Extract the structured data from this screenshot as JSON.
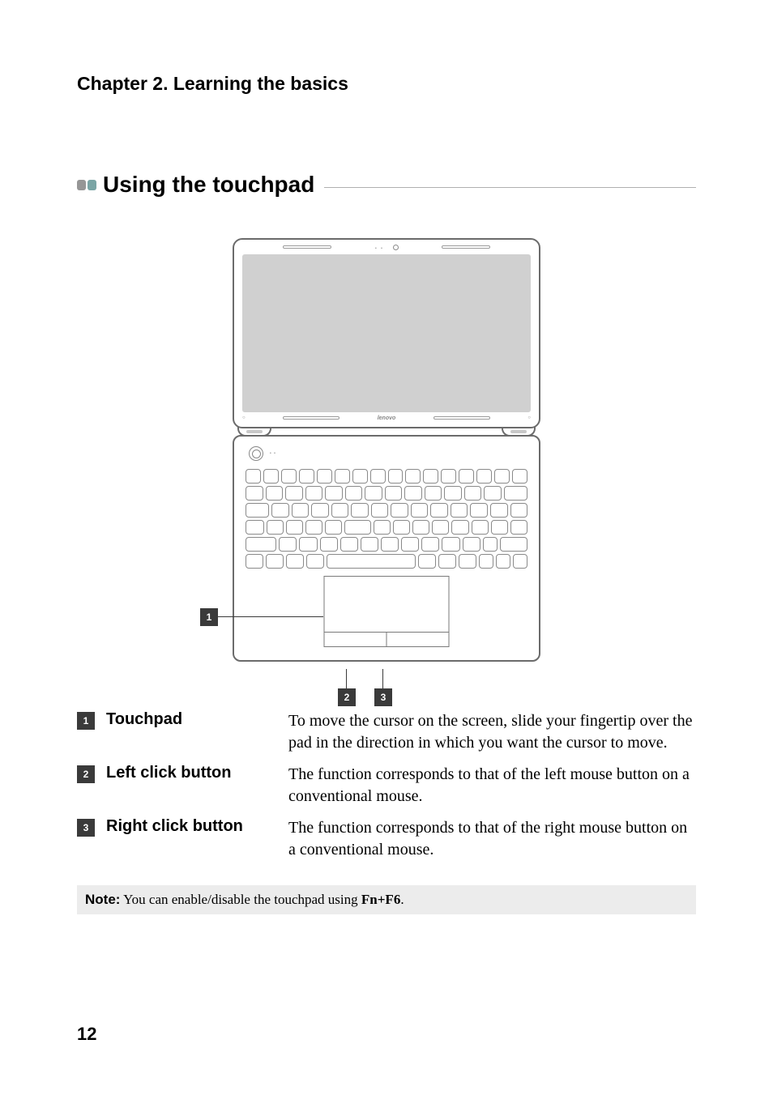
{
  "chapter": {
    "title": "Chapter 2. Learning the basics"
  },
  "section": {
    "title": "Using the touchpad"
  },
  "figure": {
    "brand": "lenovo",
    "callouts": {
      "c1": "1",
      "c2": "2",
      "c3": "3"
    },
    "keyboard_rows": [
      [
        1,
        1,
        1,
        1,
        1,
        1,
        1,
        1,
        1,
        1,
        1,
        1,
        1,
        1,
        1,
        1
      ],
      [
        1,
        1,
        1,
        1,
        1,
        1,
        1,
        1,
        1,
        1,
        1,
        1,
        1,
        1.4
      ],
      [
        1.4,
        1,
        1,
        1,
        1,
        1,
        1,
        1,
        1,
        1,
        1,
        1,
        1,
        1
      ],
      [
        1.1,
        1,
        1,
        1,
        1,
        1.6,
        1,
        1,
        1,
        1,
        1,
        1,
        1,
        1
      ],
      [
        1.8,
        1,
        1,
        1,
        1,
        1,
        1,
        1,
        1,
        1,
        1,
        0.8,
        1.6
      ],
      [
        1,
        1,
        1,
        1,
        5.4,
        1,
        1,
        1,
        0.8,
        0.8,
        0.8
      ]
    ],
    "colors": {
      "screen_inner": "#d0d0d0",
      "outline": "#6b6b6b",
      "callout_bg": "#3a3a3a"
    }
  },
  "items": [
    {
      "num": "1",
      "term": "Touchpad",
      "text": "To move the cursor on the screen, slide your fingertip over the pad in the direction in which you want the cursor to move."
    },
    {
      "num": "2",
      "term": "Left click button",
      "text": "The function corresponds to that of the left mouse button on a conventional mouse."
    },
    {
      "num": "3",
      "term": "Right click button",
      "text": "The function corresponds to that of the right mouse button on a conventional mouse."
    }
  ],
  "note": {
    "label": "Note:",
    "text_pre": " You can enable/disable the touchpad using ",
    "fn": "Fn+F6",
    "text_post": "."
  },
  "page_number": "12"
}
